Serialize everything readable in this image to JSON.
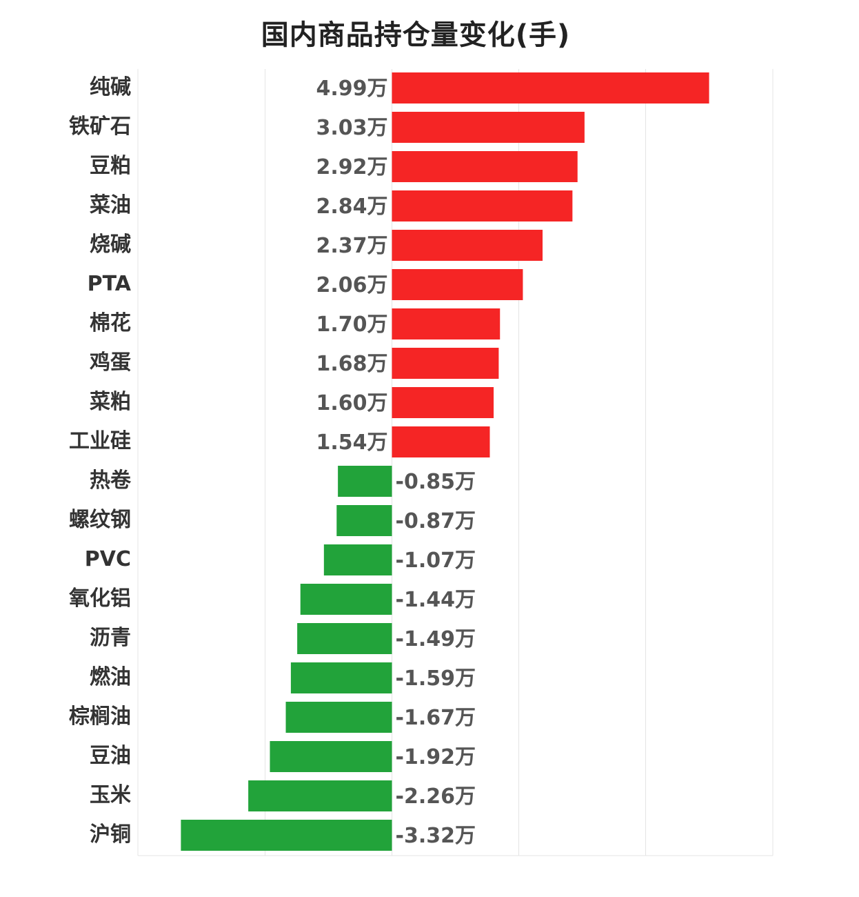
{
  "chart_data": {
    "type": "bar",
    "orientation": "horizontal",
    "title": "国内商品持仓量变化(手)",
    "xlabel": "",
    "ylabel": "",
    "xlim": [
      -4.99,
      5.0
    ],
    "grid": true,
    "categories": [
      "纯碱",
      "铁矿石",
      "豆粕",
      "菜油",
      "烧碱",
      "PTA",
      "棉花",
      "鸡蛋",
      "菜粕",
      "工业硅",
      "热卷",
      "螺纹钢",
      "PVC",
      "氧化铝",
      "沥青",
      "燃油",
      "棕榈油",
      "豆油",
      "玉米",
      "沪铜"
    ],
    "values": [
      4.99,
      3.03,
      2.92,
      2.84,
      2.37,
      2.06,
      1.7,
      1.68,
      1.6,
      1.54,
      -0.85,
      -0.87,
      -1.07,
      -1.44,
      -1.49,
      -1.59,
      -1.67,
      -1.92,
      -2.26,
      -3.32
    ],
    "value_labels": [
      "4.99万",
      "3.03万",
      "2.92万",
      "2.84万",
      "2.37万",
      "2.06万",
      "1.70万",
      "1.68万",
      "1.60万",
      "1.54万",
      "-0.85万",
      "-0.87万",
      "-1.07万",
      "-1.44万",
      "-1.49万",
      "-1.59万",
      "-1.67万",
      "-1.92万",
      "-2.26万",
      "-3.32万"
    ],
    "unit": "万",
    "colors": {
      "positive": "#f52525",
      "negative": "#22a33a",
      "grid": "#e4e4e4"
    }
  }
}
